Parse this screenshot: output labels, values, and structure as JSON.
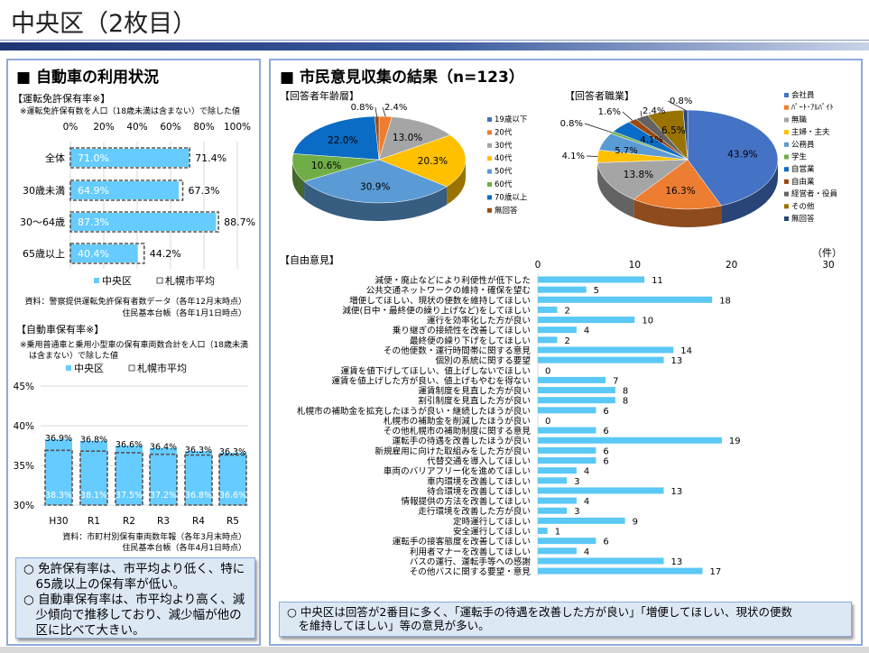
{
  "title": "中央区（2枚目）",
  "left": {
    "heading": "■ 自動車の利用状況",
    "license": {
      "title": "【運転免許保有率※】",
      "note": "※運転免許保有数を人口（18歳未満は含まない）で除した値",
      "source1": "資料：警察提供運転免許保有者数データ（各年12月末時点）",
      "source2": "住民基本台帳（各年1月1日時点）"
    },
    "car": {
      "title": "【自動車保有率※】",
      "note1": "※乗用普通車と乗用小型車の保有車両数合計を人口（18歳未満",
      "note2": "は含まない）で除した値",
      "source1": "資料：市町村別保有車両数年報（各年3月末時点）",
      "source2": "住民基本台帳（各年4月1日時点）"
    },
    "summary": [
      "○ 免許保有率は、市平均より低く、特に",
      "　65歳以上の保有率が低い。",
      "○ 自動車保有率は、市平均より高く、減",
      "　少傾向で推移しており、減少幅が他の",
      "　区に比べて大きい。"
    ]
  },
  "right": {
    "heading": "■ 市民意見収集の結果（n=123）",
    "summary": [
      "○ 中央区は回答が2番目に多く、「運転手の待遇を改善した方が良い」「増便してほしい、現状の便数",
      "　を維持してほしい」等の意見が多い。"
    ]
  },
  "chart_data": [
    {
      "type": "bar",
      "orientation": "horizontal",
      "title": "【運転免許保有率※】",
      "categories": [
        "全体",
        "30歳未満",
        "30～64歳",
        "65歳以上"
      ],
      "xlim": [
        0,
        100
      ],
      "xticks": [
        "0%",
        "20%",
        "40%",
        "60%",
        "80%",
        "100%"
      ],
      "series": [
        {
          "name": "中央区",
          "values": [
            71.0,
            64.9,
            87.3,
            40.4
          ],
          "color": "#66ccff"
        },
        {
          "name": "札幌市平均",
          "values": [
            71.4,
            67.3,
            88.7,
            44.2
          ],
          "color": "#555555"
        }
      ],
      "grid": true,
      "legend": "bottom"
    },
    {
      "type": "bar",
      "title": "【自動車保有率※】",
      "categories": [
        "H30",
        "R1",
        "R2",
        "R3",
        "R4",
        "R5"
      ],
      "ylim": [
        30,
        45
      ],
      "yticks": [
        "30%",
        "35%",
        "40%",
        "45%"
      ],
      "series": [
        {
          "name": "中央区",
          "values": [
            38.3,
            38.1,
            37.5,
            37.2,
            36.8,
            36.6
          ],
          "color": "#66ccff"
        },
        {
          "name": "札幌市平均",
          "values": [
            36.9,
            36.8,
            36.6,
            36.4,
            36.3,
            36.3
          ],
          "color": "#555555"
        }
      ],
      "grid": true,
      "legend": "top"
    },
    {
      "type": "pie",
      "title": "【回答者年齢層】",
      "legend": "right",
      "labels": [
        "19歳以下",
        "20代",
        "30代",
        "40代",
        "50代",
        "60代",
        "70歳以上",
        "無回答"
      ],
      "values": [
        0,
        2.4,
        13.0,
        20.3,
        30.9,
        10.6,
        22.0,
        0.8
      ],
      "colors": [
        "#4472c4",
        "#ed7d31",
        "#a5a5a5",
        "#ffc000",
        "#5b9bd5",
        "#70ad47",
        "#0a6cc4",
        "#9e480e"
      ]
    },
    {
      "type": "pie",
      "title": "【回答者職業】",
      "legend": "right",
      "labels": [
        "会社員",
        "ﾊﾟｰﾄ･ｱﾙﾊﾞｲﾄ",
        "無職",
        "主婦・主夫",
        "公務員",
        "学生",
        "自営業",
        "自由業",
        "経営者・役員",
        "その他",
        "無回答"
      ],
      "values": [
        43.9,
        16.3,
        13.8,
        4.1,
        5.7,
        0.8,
        4.1,
        1.6,
        2.4,
        6.5,
        0.8
      ],
      "colors": [
        "#4472c4",
        "#ed7d31",
        "#a5a5a5",
        "#ffc000",
        "#5b9bd5",
        "#70ad47",
        "#0a6cc4",
        "#9e480e",
        "#636363",
        "#997300",
        "#264478"
      ]
    },
    {
      "type": "bar",
      "orientation": "horizontal",
      "title": "【自由意見】",
      "unit": "（件）",
      "xlim": [
        0,
        30
      ],
      "xticks": [
        "0",
        "10",
        "20",
        "30"
      ],
      "color": "#5bc8f5",
      "categories": [
        "減便・廃止などにより利便性が低下した",
        "公共交通ネットワークの維持・確保を望む",
        "増便してほしい、現状の便数を維持してほしい",
        "減便(日中・最終便の繰り上げなど)をしてほしい",
        "運行を効率化した方が良い",
        "乗り継ぎの接続性を改善してほしい",
        "最終便の繰り下げをしてほしい",
        "その他便数・運行時間帯に関する意見",
        "個別の系統に関する要望",
        "運賃を値下げしてほしい、値上げしないでほしい",
        "運賃を値上げした方が良い、値上げもやむを得ない",
        "運賃制度を見直した方が良い",
        "割引制度を見直した方が良い",
        "札幌市の補助金を拡充したほうが良い・継続したほうが良い",
        "札幌市の補助金を削減したほうが良い",
        "その他札幌市の補助制度に関する意見",
        "運転手の待遇を改善したほうが良い",
        "新規雇用に向けた取組みをした方が良い",
        "代替交通を導入してほしい",
        "車両のバリアフリー化を進めてほしい",
        "車内環境を改善してほしい",
        "待合環境を改善してほしい",
        "情報提供の方法を改善してほしい",
        "走行環境を改善した方が良い",
        "定時運行してほしい",
        "安全運行してほしい",
        "運転手の接客態度を改善してほしい",
        "利用者マナーを改善してほしい",
        "バスの運行、運転手等への感謝",
        "その他バスに関する要望・意見"
      ],
      "values": [
        11,
        5,
        18,
        2,
        10,
        4,
        2,
        14,
        13,
        0,
        7,
        8,
        8,
        6,
        0,
        6,
        19,
        6,
        6,
        4,
        3,
        13,
        4,
        3,
        9,
        1,
        6,
        4,
        13,
        17
      ]
    }
  ]
}
